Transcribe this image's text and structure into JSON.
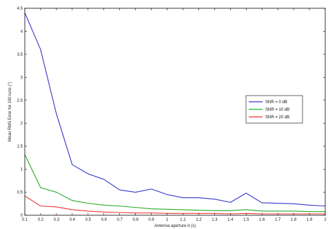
{
  "chart_data": {
    "type": "line",
    "title": "",
    "xlabel": "Antenna aperture d (λ)",
    "ylabel": "Mean RMS Error for 100 runs (°)",
    "xlim": [
      0.1,
      2
    ],
    "ylim": [
      0,
      4.5
    ],
    "x": [
      0.1,
      0.2,
      0.3,
      0.4,
      0.5,
      0.6,
      0.7,
      0.8,
      0.9,
      1.0,
      1.1,
      1.2,
      1.3,
      1.4,
      1.5,
      1.6,
      1.7,
      1.8,
      1.9,
      2.0
    ],
    "x_tick_labels": [
      "0.1",
      "0.2",
      "0.3",
      "0.4",
      "0.5",
      "0.6",
      "0.7",
      "0.8",
      "0.9",
      "1",
      "1.1",
      "1.2",
      "1.3",
      "1.4",
      "1.5",
      "1.6",
      "1.7",
      "1.8",
      "1.9",
      "2"
    ],
    "y_ticks": [
      0,
      0.5,
      1,
      1.5,
      2,
      2.5,
      3,
      3.5,
      4,
      4.5
    ],
    "y_tick_labels": [
      "0",
      "0.5",
      "1",
      "1.5",
      "2",
      "2.5",
      "3",
      "3.5",
      "4",
      "4.5"
    ],
    "grid": false,
    "legend_position": "right",
    "series": [
      {
        "name": "SNR = 0 dB",
        "color": "#3333cc",
        "values": [
          4.4,
          3.6,
          2.2,
          1.1,
          0.9,
          0.78,
          0.55,
          0.5,
          0.57,
          0.45,
          0.38,
          0.38,
          0.35,
          0.28,
          0.48,
          0.27,
          0.26,
          0.25,
          0.22,
          0.2
        ]
      },
      {
        "name": "SNR = 10 dB",
        "color": "#22aa22",
        "values": [
          1.32,
          0.6,
          0.5,
          0.32,
          0.26,
          0.22,
          0.2,
          0.17,
          0.14,
          0.13,
          0.12,
          0.11,
          0.1,
          0.1,
          0.12,
          0.09,
          0.09,
          0.09,
          0.08,
          0.08
        ]
      },
      {
        "name": "SNR = 20 dB",
        "color": "#ee3333",
        "values": [
          0.42,
          0.2,
          0.18,
          0.12,
          0.09,
          0.07,
          0.06,
          0.05,
          0.05,
          0.04,
          0.04,
          0.04,
          0.04,
          0.03,
          0.04,
          0.03,
          0.03,
          0.03,
          0.03,
          0.03
        ]
      }
    ]
  }
}
